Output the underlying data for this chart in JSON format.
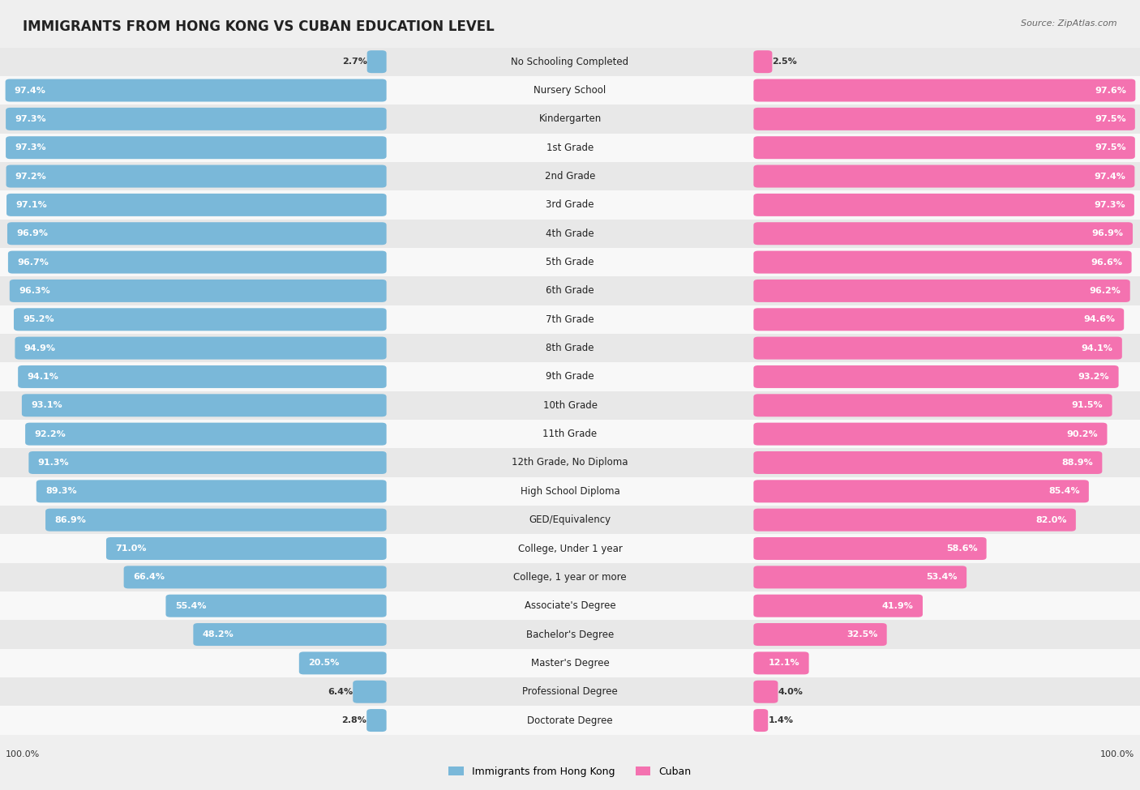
{
  "title": "IMMIGRANTS FROM HONG KONG VS CUBAN EDUCATION LEVEL",
  "source": "Source: ZipAtlas.com",
  "categories": [
    "No Schooling Completed",
    "Nursery School",
    "Kindergarten",
    "1st Grade",
    "2nd Grade",
    "3rd Grade",
    "4th Grade",
    "5th Grade",
    "6th Grade",
    "7th Grade",
    "8th Grade",
    "9th Grade",
    "10th Grade",
    "11th Grade",
    "12th Grade, No Diploma",
    "High School Diploma",
    "GED/Equivalency",
    "College, Under 1 year",
    "College, 1 year or more",
    "Associate's Degree",
    "Bachelor's Degree",
    "Master's Degree",
    "Professional Degree",
    "Doctorate Degree"
  ],
  "hk_values": [
    2.7,
    97.4,
    97.3,
    97.3,
    97.2,
    97.1,
    96.9,
    96.7,
    96.3,
    95.2,
    94.9,
    94.1,
    93.1,
    92.2,
    91.3,
    89.3,
    86.9,
    71.0,
    66.4,
    55.4,
    48.2,
    20.5,
    6.4,
    2.8
  ],
  "cuban_values": [
    2.5,
    97.6,
    97.5,
    97.5,
    97.4,
    97.3,
    96.9,
    96.6,
    96.2,
    94.6,
    94.1,
    93.2,
    91.5,
    90.2,
    88.9,
    85.4,
    82.0,
    58.6,
    53.4,
    41.9,
    32.5,
    12.1,
    4.0,
    1.4
  ],
  "hk_color": "#7ab8d9",
  "cuban_color": "#f472b0",
  "bg_color": "#efefef",
  "row_colors": [
    "#e8e8e8",
    "#f8f8f8"
  ],
  "label_fontsize": 8.5,
  "title_fontsize": 12,
  "value_fontsize": 8,
  "legend_fontsize": 9
}
